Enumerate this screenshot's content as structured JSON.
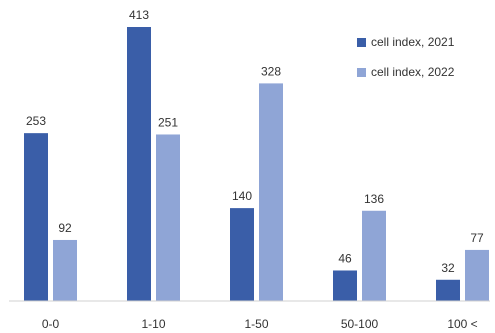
{
  "chart_data": {
    "type": "bar",
    "categories": [
      "0-0",
      "1-10",
      "1-50",
      "50-100",
      "100 <"
    ],
    "series": [
      {
        "name": "cell index, 2021",
        "values": [
          253,
          413,
          140,
          46,
          32
        ],
        "color": "#3a5ea8"
      },
      {
        "name": "cell index, 2022",
        "values": [
          92,
          251,
          328,
          136,
          77
        ],
        "color": "#8fa5d6"
      }
    ],
    "title": "",
    "xlabel": "",
    "ylabel": "",
    "ylim": [
      0,
      413
    ],
    "grid": false,
    "legend": "top-right"
  }
}
